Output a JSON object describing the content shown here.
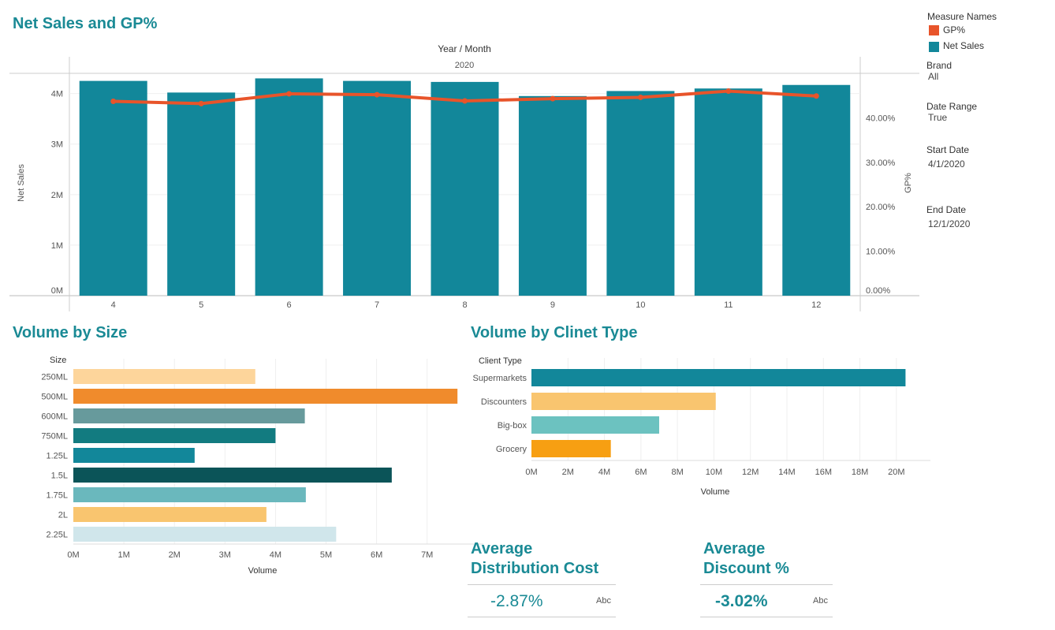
{
  "net_sales_title": "Net Sales and GP%",
  "volume_size_title": "Volume by Size",
  "volume_client_title": "Volume by Clinet Type",
  "legend": {
    "title": "Measure Names",
    "items": [
      {
        "label": "GP%",
        "color": "#e8542a"
      },
      {
        "label": "Net Sales",
        "color": "#12879a"
      }
    ]
  },
  "filters": [
    {
      "label": "Brand",
      "value": "All"
    },
    {
      "label": "Date Range",
      "value": "True"
    },
    {
      "label": "Start Date",
      "value": "4/1/2020"
    },
    {
      "label": "End Date",
      "value": "12/1/2020"
    }
  ],
  "kpis": [
    {
      "title_line1": "Average",
      "title_line2": "Distribution Cost",
      "value": "-2.87%",
      "abc": "Abc"
    },
    {
      "title_line1": "Average",
      "title_line2": "Discount %",
      "value": "-3.02%",
      "abc": "Abc"
    }
  ],
  "chart_data": [
    {
      "type": "bar",
      "title": "Net Sales and GP%",
      "header_top": "Year  /  Month",
      "header_year": "2020",
      "categories": [
        "4",
        "5",
        "6",
        "7",
        "8",
        "9",
        "10",
        "11",
        "12"
      ],
      "series": [
        {
          "name": "Net Sales",
          "type": "bar",
          "axis": "left",
          "color": "#12879a",
          "values": [
            4250000,
            4020000,
            4300000,
            4250000,
            4230000,
            3950000,
            4050000,
            4100000,
            4170000
          ]
        },
        {
          "name": "GP%",
          "type": "line",
          "axis": "right",
          "color": "#e8542a",
          "values": [
            43.7,
            43.2,
            45.4,
            45.2,
            43.8,
            44.3,
            44.6,
            46.0,
            44.9
          ]
        }
      ],
      "ylabel": "Net Sales",
      "ylim": [
        0,
        4400000
      ],
      "yticks": [
        0,
        1000000,
        2000000,
        3000000,
        4000000
      ],
      "ytick_labels": [
        "0M",
        "1M",
        "2M",
        "3M",
        "4M"
      ],
      "y2label": "GP%",
      "y2lim": [
        0,
        50
      ],
      "y2ticks": [
        0,
        10,
        20,
        30,
        40
      ],
      "y2tick_labels": [
        "0.00%",
        "10.00%",
        "20.00%",
        "30.00%",
        "40.00%"
      ]
    },
    {
      "type": "bar",
      "orientation": "horizontal",
      "title": "Volume by Size",
      "category_header": "Size",
      "categories": [
        "250ML",
        "500ML",
        "600ML",
        "750ML",
        "1.25L",
        "1.5L",
        "1.75L",
        "2L",
        "2.25L"
      ],
      "values": [
        3600000,
        7600000,
        4580000,
        4000000,
        2400000,
        6300000,
        4600000,
        3820000,
        5200000
      ],
      "colors": [
        "#fdd59b",
        "#f08b2c",
        "#679a9c",
        "#127b80",
        "#12879a",
        "#0b5458",
        "#6ab8bd",
        "#f9c56f",
        "#d0e6eb"
      ],
      "xlabel": "Volume",
      "xlim": [
        0,
        7800000
      ],
      "xticks": [
        0,
        1000000,
        2000000,
        3000000,
        4000000,
        5000000,
        6000000,
        7000000
      ],
      "xtick_labels": [
        "0M",
        "1M",
        "2M",
        "3M",
        "4M",
        "5M",
        "6M",
        "7M"
      ]
    },
    {
      "type": "bar",
      "orientation": "horizontal",
      "title": "Volume by Clinet Type",
      "category_header": "Client Type",
      "categories": [
        "Supermarkets",
        "Discounters",
        "Big-box",
        "Grocery"
      ],
      "values": [
        20500000,
        10100000,
        7000000,
        4350000
      ],
      "colors": [
        "#12879a",
        "#f9c56f",
        "#6cc2c0",
        "#f79f12"
      ],
      "xlabel": "Volume",
      "xlim": [
        0,
        21000000
      ],
      "xticks": [
        0,
        2000000,
        4000000,
        6000000,
        8000000,
        10000000,
        12000000,
        14000000,
        16000000,
        18000000,
        20000000
      ],
      "xtick_labels": [
        "0M",
        "2M",
        "4M",
        "6M",
        "8M",
        "10M",
        "12M",
        "14M",
        "16M",
        "18M",
        "20M"
      ]
    }
  ]
}
